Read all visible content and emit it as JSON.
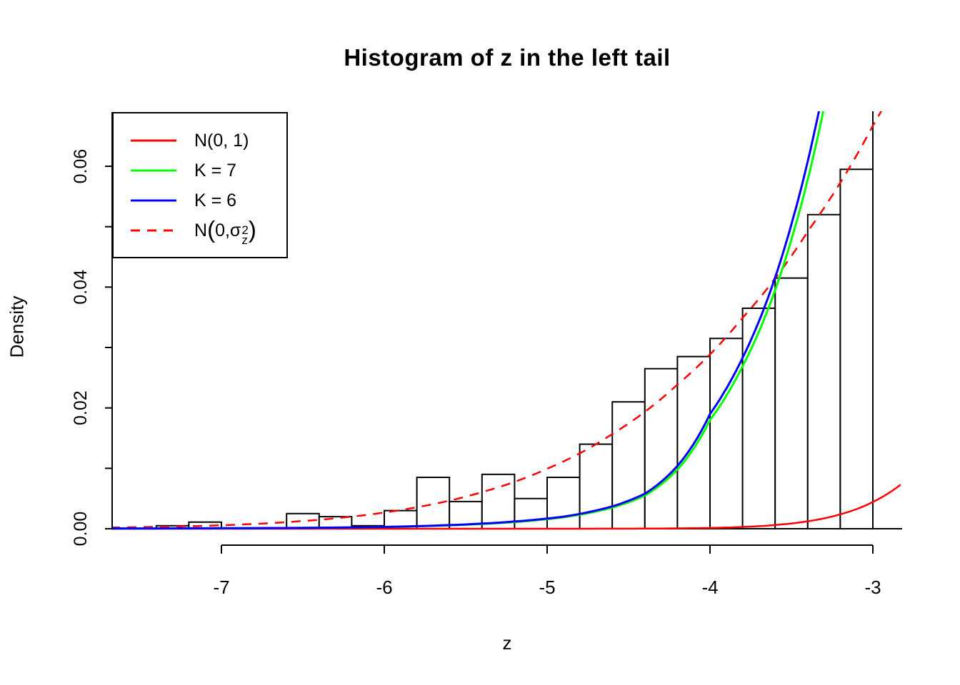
{
  "title": "Histogram of z in the left tail",
  "axes": {
    "x": {
      "label": "z",
      "ticks": [
        {
          "v": -7,
          "label": "-7"
        },
        {
          "v": -6,
          "label": "-6"
        },
        {
          "v": -5,
          "label": "-5"
        },
        {
          "v": -4,
          "label": "-4"
        },
        {
          "v": -3,
          "label": "-3"
        }
      ]
    },
    "y": {
      "label": "Density",
      "ticks": [
        {
          "v": 0.0,
          "label": "0.00"
        },
        {
          "v": 0.01,
          "label": ""
        },
        {
          "v": 0.02,
          "label": "0.02"
        },
        {
          "v": 0.03,
          "label": ""
        },
        {
          "v": 0.04,
          "label": "0.04"
        },
        {
          "v": 0.05,
          "label": ""
        },
        {
          "v": 0.06,
          "label": "0.06"
        }
      ]
    }
  },
  "legend": {
    "position": "topleft",
    "items": [
      {
        "label": "N(0, 1)",
        "color": "#ff0000",
        "style": "solid"
      },
      {
        "label": "K = 7",
        "color": "#00ff00",
        "style": "solid"
      },
      {
        "label": "K = 6",
        "color": "#0000ff",
        "style": "solid"
      },
      {
        "label": "N(0, σ_z^2)",
        "color": "#ff0000",
        "style": "dashed",
        "rich": {
          "prefix": "N",
          "lparen": "(",
          "mid": "0, ",
          "sigma": "σ",
          "sup": "2",
          "sub": "z",
          "rparen": ")"
        }
      }
    ]
  },
  "chart_data": {
    "type": "bar",
    "subtype": "histogram-with-density-curves",
    "title": "Histogram of z in the left tail",
    "xlabel": "z",
    "ylabel": "Density",
    "xlim": [
      -7.67,
      -2.82
    ],
    "ylim": [
      0,
      0.069
    ],
    "grid": false,
    "bar_fill": "#ffffff",
    "bar_stroke": "#000000",
    "bins": {
      "start": -7.4,
      "width": 0.2,
      "densities": [
        0.0005,
        0.0011,
        0,
        0,
        0.0025,
        0.002,
        0.0005,
        0.003,
        0.0085,
        0.0045,
        0.009,
        0.005,
        0.0085,
        0.014,
        0.021,
        0.0265,
        0.0285,
        0.0315,
        0.0365,
        0.0415,
        0.052,
        0.0595,
        0.075
      ]
    },
    "curves": [
      {
        "name": "N(0, 1)",
        "color": "#ff0000",
        "dashed": false,
        "width": 2.5,
        "points": [
          [
            -7.68,
            1e-07
          ],
          [
            -5.5,
            2e-07
          ],
          [
            -5.0,
            1.5e-06
          ],
          [
            -4.6,
            1e-05
          ],
          [
            -4.3,
            4e-05
          ],
          [
            -4.0,
            0.000134
          ],
          [
            -3.8,
            0.000292
          ],
          [
            -3.6,
            0.000612
          ],
          [
            -3.4,
            0.001232
          ],
          [
            -3.2,
            0.002384
          ],
          [
            -3.0,
            0.004432
          ],
          [
            -2.9,
            0.00595
          ],
          [
            -2.83,
            0.00729
          ]
        ]
      },
      {
        "name": "N(0, sigma_z^2)",
        "color": "#ff0000",
        "dashed": true,
        "width": 2.5,
        "points": [
          [
            -7.68,
            0.0002
          ],
          [
            -7.4,
            0.00031
          ],
          [
            -7.0,
            0.00057
          ],
          [
            -6.6,
            0.00109
          ],
          [
            -6.2,
            0.00201
          ],
          [
            -5.8,
            0.00356
          ],
          [
            -5.4,
            0.00606
          ],
          [
            -5.0,
            0.00993
          ],
          [
            -4.6,
            0.01568
          ],
          [
            -4.2,
            0.02386
          ],
          [
            -3.8,
            0.03491
          ],
          [
            -3.4,
            0.04919
          ],
          [
            -3.0,
            0.0667
          ],
          [
            -2.88,
            0.07253
          ]
        ]
      },
      {
        "name": "K = 7",
        "color": "#00ff00",
        "dashed": false,
        "width": 3,
        "points": [
          [
            -7.68,
            4e-05
          ],
          [
            -7.0,
            8e-05
          ],
          [
            -6.4,
            0.00015
          ],
          [
            -6.0,
            0.00028
          ],
          [
            -5.6,
            0.00056
          ],
          [
            -5.2,
            0.0011
          ],
          [
            -4.9,
            0.0019
          ],
          [
            -4.6,
            0.0035
          ],
          [
            -4.4,
            0.0055
          ],
          [
            -4.2,
            0.0098
          ],
          [
            -4.0,
            0.018
          ],
          [
            -3.9,
            0.022
          ],
          [
            -3.8,
            0.0269
          ],
          [
            -3.7,
            0.0326
          ],
          [
            -3.6,
            0.0395
          ],
          [
            -3.5,
            0.0479
          ],
          [
            -3.4,
            0.0578
          ],
          [
            -3.3,
            0.0697
          ],
          [
            -3.2,
            0.0838
          ]
        ]
      },
      {
        "name": "K = 6",
        "color": "#0000ff",
        "dashed": false,
        "width": 3,
        "points": [
          [
            -7.68,
            4e-05
          ],
          [
            -7.0,
            8e-05
          ],
          [
            -6.4,
            0.00016
          ],
          [
            -6.0,
            0.0003
          ],
          [
            -5.6,
            0.0006
          ],
          [
            -5.2,
            0.0012
          ],
          [
            -4.9,
            0.002
          ],
          [
            -4.6,
            0.0037
          ],
          [
            -4.4,
            0.0058
          ],
          [
            -4.2,
            0.0104
          ],
          [
            -4.0,
            0.019
          ],
          [
            -3.9,
            0.0232
          ],
          [
            -3.8,
            0.0283
          ],
          [
            -3.7,
            0.0343
          ],
          [
            -3.6,
            0.0416
          ],
          [
            -3.5,
            0.0504
          ],
          [
            -3.4,
            0.0608
          ],
          [
            -3.3,
            0.0733
          ],
          [
            -3.2,
            0.0882
          ]
        ]
      }
    ]
  }
}
